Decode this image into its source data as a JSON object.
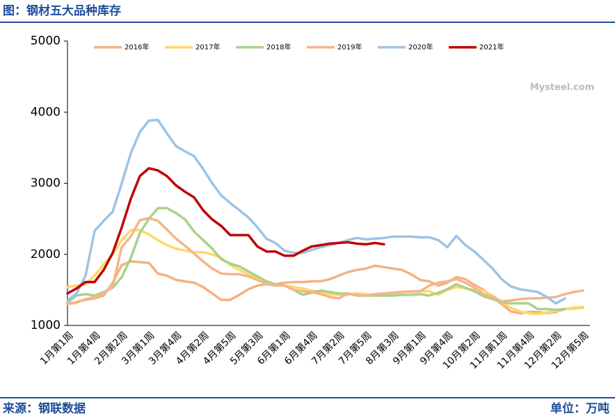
{
  "header": {
    "title": "图：钢材五大品种库存"
  },
  "footer": {
    "source": "来源：钢联数据",
    "unit": "单位：万吨"
  },
  "watermark": "Mysteel.com",
  "chart_data": {
    "type": "line",
    "categories": [
      "1月第1周",
      null,
      null,
      "1月第4周",
      null,
      null,
      "2月第2周",
      null,
      null,
      "3月第1周",
      null,
      null,
      "3月第4周",
      null,
      null,
      "4月第2周",
      null,
      null,
      "4月第5周",
      null,
      null,
      "5月第3周",
      null,
      null,
      "6月第1周",
      null,
      null,
      "6月第4周",
      null,
      null,
      "7月第2周",
      null,
      null,
      "7月第5周",
      null,
      null,
      "8月第3周",
      null,
      null,
      "9月第1周",
      null,
      null,
      "9月第4周",
      null,
      null,
      "10月第2周",
      null,
      null,
      "11月第1周",
      null,
      null,
      "11月第4周",
      null,
      null,
      "12月第2周",
      null,
      null,
      "12月第5周"
    ],
    "series": [
      {
        "name": "2016年",
        "color": "#f4b183",
        "values": [
          1300,
          1330,
          1360,
          1380,
          1420,
          1600,
          1850,
          1900,
          1890,
          1880,
          1730,
          1700,
          1640,
          1620,
          1600,
          1540,
          1450,
          1360,
          1360,
          1430,
          1510,
          1560,
          1580,
          1580,
          1600,
          1610,
          1610,
          1620,
          1620,
          1650,
          1700,
          1750,
          1780,
          1800,
          1840,
          1820,
          1800,
          1780,
          1720,
          1640,
          1620,
          1560,
          1600,
          1680,
          1650,
          1570,
          1500,
          1400,
          1300,
          1200,
          1170,
          1190,
          1190,
          1170,
          1190,
          1230,
          1240,
          1250
        ]
      },
      {
        "name": "2017年",
        "color": "#ffd966",
        "values": [
          1540,
          1560,
          1580,
          1700,
          1860,
          2000,
          2200,
          2340,
          2340,
          2280,
          2200,
          2130,
          2080,
          2050,
          2030,
          2030,
          2000,
          1950,
          1850,
          1780,
          1720,
          1660,
          1600,
          1560,
          1560,
          1540,
          1520,
          1490,
          1470,
          1440,
          1430,
          1430,
          1450,
          1440,
          1430,
          1440,
          1450,
          1470,
          1470,
          1480,
          1480,
          1430,
          1500,
          1540,
          1520,
          1500,
          1490,
          1420,
          1330,
          1250,
          1200,
          1170,
          1160,
          1180,
          1210,
          1230,
          1250,
          1260
        ]
      },
      {
        "name": "2018年",
        "color": "#a9d18e",
        "values": [
          1320,
          1420,
          1440,
          1420,
          1470,
          1530,
          1680,
          1950,
          2300,
          2500,
          2650,
          2650,
          2580,
          2490,
          2320,
          2200,
          2080,
          1930,
          1870,
          1830,
          1760,
          1690,
          1620,
          1580,
          1560,
          1500,
          1430,
          1460,
          1490,
          1470,
          1450,
          1450,
          1420,
          1420,
          1420,
          1420,
          1420,
          1430,
          1430,
          1440,
          1420,
          1460,
          1510,
          1580,
          1530,
          1480,
          1410,
          1370,
          1330,
          1310,
          1310,
          1310,
          1230,
          1230,
          1220,
          1230,
          null,
          null
        ]
      },
      {
        "name": "2019年",
        "color": "#f5b48c",
        "values": [
          1300,
          1320,
          1370,
          1400,
          1450,
          1550,
          2100,
          2250,
          2480,
          2510,
          2470,
          2350,
          2220,
          2120,
          2010,
          1900,
          1800,
          1730,
          1720,
          1720,
          1690,
          1640,
          1580,
          1560,
          1560,
          1500,
          1480,
          1470,
          1440,
          1400,
          1380,
          1450,
          1430,
          1420,
          1440,
          1450,
          1460,
          1470,
          1480,
          1480,
          1560,
          1600,
          1620,
          1650,
          1600,
          1530,
          1440,
          1400,
          1340,
          1350,
          1370,
          1380,
          1380,
          1390,
          1400,
          1440,
          1470,
          1490
        ]
      },
      {
        "name": "2020年",
        "color": "#9dc3e6",
        "values": [
          1350,
          1450,
          1700,
          2330,
          2470,
          2600,
          3000,
          3420,
          3720,
          3880,
          3890,
          3700,
          3520,
          3450,
          3380,
          3200,
          3000,
          2830,
          2720,
          2620,
          2520,
          2380,
          2220,
          2160,
          2050,
          2020,
          2020,
          2060,
          2100,
          2130,
          2160,
          2200,
          2230,
          2210,
          2220,
          2230,
          2250,
          2250,
          2250,
          2240,
          2240,
          2200,
          2100,
          2260,
          2130,
          2040,
          1920,
          1800,
          1650,
          1550,
          1510,
          1490,
          1470,
          1400,
          1310,
          1380,
          null,
          null
        ]
      },
      {
        "name": "2021年",
        "color": "#c00000",
        "values": [
          1450,
          1520,
          1610,
          1610,
          1780,
          2020,
          2380,
          2780,
          3100,
          3210,
          3180,
          3100,
          2970,
          2880,
          2800,
          2620,
          2490,
          2400,
          2270,
          2270,
          2270,
          2110,
          2040,
          2040,
          1980,
          1980,
          2050,
          2110,
          2130,
          2150,
          2160,
          2170,
          2150,
          2140,
          2160,
          2140,
          null,
          null,
          null,
          null,
          null,
          null,
          null,
          null,
          null,
          null,
          null,
          null,
          null,
          null,
          null,
          null,
          null,
          null,
          null,
          null,
          null,
          null
        ]
      }
    ],
    "ylim": [
      1000,
      5000
    ],
    "yticks": [
      1000,
      2000,
      3000,
      4000,
      5000
    ],
    "grid": false,
    "legend": "top"
  }
}
